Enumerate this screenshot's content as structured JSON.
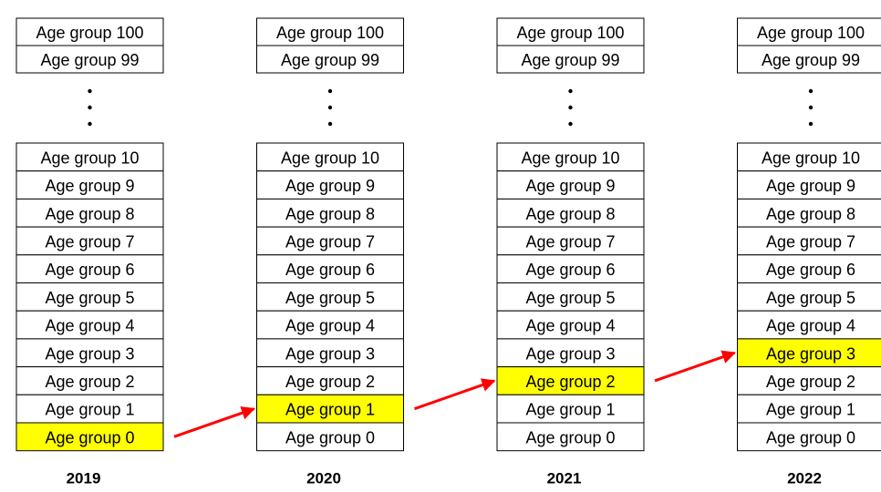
{
  "columns": [
    {
      "year": "2019",
      "top": [
        "Age group 100",
        "Age group 99"
      ],
      "bottom": [
        "Age group 10",
        "Age group 9",
        "Age group 8",
        "Age group 7",
        "Age group 6",
        "Age group 5",
        "Age group 4",
        "Age group 3",
        "Age group 2",
        "Age group 1",
        "Age group 0"
      ],
      "highlight": 10
    },
    {
      "year": "2020",
      "top": [
        "Age group 100",
        "Age group 99"
      ],
      "bottom": [
        "Age group 10",
        "Age group 9",
        "Age group 8",
        "Age group 7",
        "Age group 6",
        "Age group 5",
        "Age group 4",
        "Age group 3",
        "Age group 2",
        "Age group 1",
        "Age group 0"
      ],
      "highlight": 9
    },
    {
      "year": "2021",
      "top": [
        "Age group 100",
        "Age group 99"
      ],
      "bottom": [
        "Age group 10",
        "Age group 9",
        "Age group 8",
        "Age group 7",
        "Age group 6",
        "Age group 5",
        "Age group 4",
        "Age group 3",
        "Age group 2",
        "Age group 1",
        "Age group 0"
      ],
      "highlight": 8
    },
    {
      "year": "2022",
      "top": [
        "Age group 100",
        "Age group 99"
      ],
      "bottom": [
        "Age group 10",
        "Age group 9",
        "Age group 8",
        "Age group 7",
        "Age group 6",
        "Age group 5",
        "Age group 4",
        "Age group 3",
        "Age group 2",
        "Age group 1",
        "Age group 0"
      ],
      "highlight": 7
    }
  ],
  "highlight_color": "#ffff00",
  "arrow_color": "#ff0000"
}
